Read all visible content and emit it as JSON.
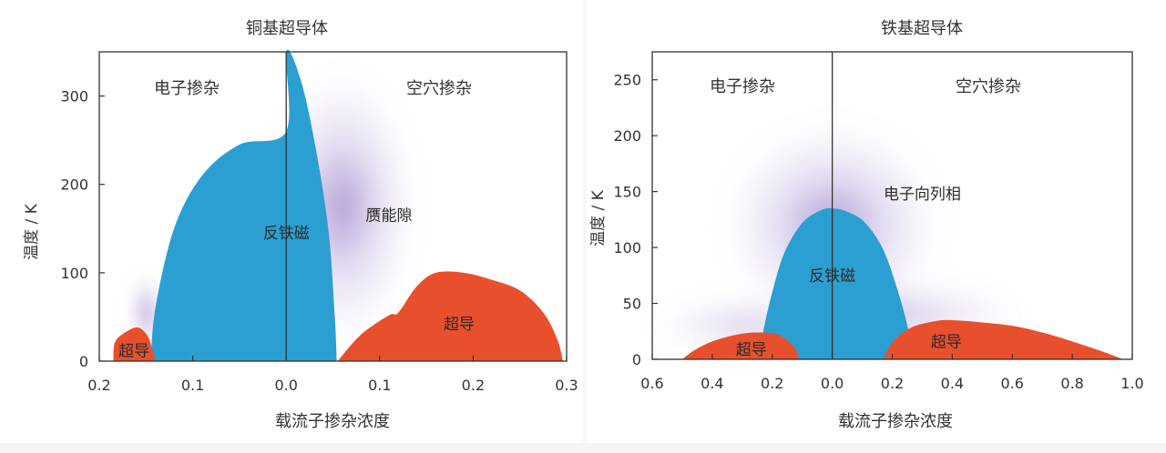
{
  "colors": {
    "antiferromagnet": "#2b9fd1",
    "superconducting": "#e8502d",
    "haze": "#7a58b6",
    "panel": "#ffffff",
    "page": "#f3f5f7"
  },
  "chart_data": [
    {
      "type": "area",
      "title": "铜基超导体",
      "xlabel": "载流子掺杂浓度",
      "ylabel": "温度 / K",
      "xlim": [
        -0.2,
        0.3
      ],
      "ylim": [
        0,
        350
      ],
      "x_ticks": [
        -0.2,
        -0.1,
        0.0,
        0.1,
        0.2,
        0.3
      ],
      "x_tick_labels": [
        "0.2",
        "0.1",
        "0.0",
        "0.1",
        "0.2",
        "0.3"
      ],
      "y_ticks": [
        0,
        100,
        200,
        300
      ],
      "y_tick_labels": [
        "0",
        "100",
        "200",
        "300"
      ],
      "region_labels": {
        "electron_doped": "电子掺杂",
        "hole_doped": "空穴掺杂"
      },
      "regions": [
        {
          "key": "afm",
          "label": "反铁磁",
          "color": "antiferromagnet",
          "boundary": [
            [
              -0.145,
              0
            ],
            [
              -0.14,
              60
            ],
            [
              -0.12,
              150
            ],
            [
              -0.09,
              210
            ],
            [
              -0.05,
              245
            ],
            [
              0.0,
              260
            ],
            [
              0.0,
              350
            ],
            [
              0.015,
              320
            ],
            [
              0.03,
              250
            ],
            [
              0.045,
              150
            ],
            [
              0.052,
              50
            ],
            [
              0.054,
              0
            ]
          ],
          "label_at": [
            0.0,
            145
          ]
        },
        {
          "key": "sc-electron",
          "label": "超导",
          "color": "superconducting",
          "boundary": [
            [
              -0.185,
              0
            ],
            [
              -0.183,
              22
            ],
            [
              -0.17,
              34
            ],
            [
              -0.158,
              38
            ],
            [
              -0.148,
              28
            ],
            [
              -0.143,
              12
            ],
            [
              -0.14,
              0
            ]
          ],
          "label_at": [
            -0.163,
            12
          ]
        },
        {
          "key": "sc-hole",
          "label": "超导",
          "color": "superconducting",
          "boundary": [
            [
              0.055,
              0
            ],
            [
              0.08,
              30
            ],
            [
              0.11,
              52
            ],
            [
              0.12,
              55
            ],
            [
              0.14,
              85
            ],
            [
              0.16,
              100
            ],
            [
              0.19,
              100
            ],
            [
              0.22,
              92
            ],
            [
              0.25,
              80
            ],
            [
              0.275,
              55
            ],
            [
              0.29,
              25
            ],
            [
              0.296,
              0
            ]
          ],
          "label_at": [
            0.185,
            42
          ]
        }
      ],
      "annotations": [
        {
          "text": "赝能隙",
          "at": [
            0.11,
            165
          ]
        }
      ]
    },
    {
      "type": "area",
      "title": "铁基超导体",
      "xlabel": "载流子掺杂浓度",
      "ylabel": "温度 / K",
      "xlim": [
        -0.6,
        1.0
      ],
      "ylim": [
        0,
        275
      ],
      "x_ticks": [
        -0.6,
        -0.4,
        -0.2,
        0.0,
        0.2,
        0.4,
        0.6,
        0.8,
        1.0
      ],
      "x_tick_labels": [
        "0.6",
        "0.4",
        "0.2",
        "0.0",
        "0.2",
        "0.4",
        "0.6",
        "0.8",
        "1.0"
      ],
      "y_ticks": [
        0,
        50,
        100,
        150,
        200,
        250
      ],
      "y_tick_labels": [
        "0",
        "50",
        "100",
        "150",
        "200",
        "250"
      ],
      "region_labels": {
        "electron_doped": "电子掺杂",
        "hole_doped": "空穴掺杂"
      },
      "regions": [
        {
          "key": "afm",
          "label": "反铁磁",
          "color": "antiferromagnet",
          "boundary": [
            [
              -0.245,
              0
            ],
            [
              -0.23,
              25
            ],
            [
              -0.2,
              60
            ],
            [
              -0.16,
              95
            ],
            [
              -0.1,
              122
            ],
            [
              -0.04,
              133
            ],
            [
              0.0,
              135
            ],
            [
              0.05,
              132
            ],
            [
              0.11,
              122
            ],
            [
              0.17,
              98
            ],
            [
              0.22,
              60
            ],
            [
              0.255,
              25
            ],
            [
              0.27,
              0
            ]
          ],
          "label_at": [
            0.0,
            75
          ]
        },
        {
          "key": "sc-electron",
          "label": "超导",
          "color": "superconducting",
          "boundary": [
            [
              -0.5,
              0
            ],
            [
              -0.46,
              8
            ],
            [
              -0.4,
              16
            ],
            [
              -0.32,
              22
            ],
            [
              -0.25,
              24
            ],
            [
              -0.18,
              22
            ],
            [
              -0.13,
              12
            ],
            [
              -0.11,
              0
            ]
          ],
          "label_at": [
            -0.27,
            9
          ]
        },
        {
          "key": "sc-hole",
          "label": "超导",
          "color": "superconducting",
          "boundary": [
            [
              0.17,
              0
            ],
            [
              0.2,
              15
            ],
            [
              0.26,
              28
            ],
            [
              0.34,
              34
            ],
            [
              0.4,
              35
            ],
            [
              0.5,
              33
            ],
            [
              0.6,
              30
            ],
            [
              0.7,
              24
            ],
            [
              0.8,
              16
            ],
            [
              0.9,
              7
            ],
            [
              0.97,
              0
            ]
          ],
          "label_at": [
            0.38,
            16
          ]
        }
      ],
      "annotations": [
        {
          "text": "电子向列相",
          "at": [
            0.3,
            148
          ]
        }
      ]
    }
  ]
}
